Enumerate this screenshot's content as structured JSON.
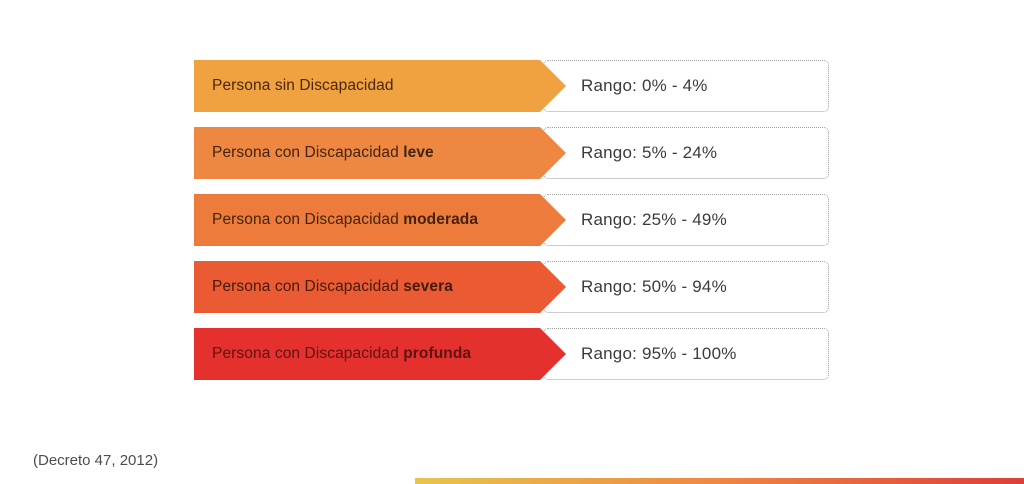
{
  "rows": [
    {
      "label_prefix": "Persona sin Discapacidad",
      "label_bold": "",
      "range": "Rango: 0% - 4%",
      "arrow_color": "#F0A240",
      "label_color": "#4A270E"
    },
    {
      "label_prefix": "Persona con Discapacidad ",
      "label_bold": "leve",
      "range": "Rango: 5% - 24%",
      "arrow_color": "#EE8742",
      "label_color": "#43230C"
    },
    {
      "label_prefix": "Persona con Discapacidad ",
      "label_bold": "moderada",
      "range": "Rango: 25% - 49%",
      "arrow_color": "#ED7C3C",
      "label_color": "#43230C"
    },
    {
      "label_prefix": "Persona con Discapacidad ",
      "label_bold": "severa",
      "range": "Rango: 50% - 94%",
      "arrow_color": "#EA5B33",
      "label_color": "#461A0C"
    },
    {
      "label_prefix": "Persona con Discapacidad ",
      "label_bold": "profunda",
      "range": "Rango: 95% - 100%",
      "arrow_color": "#E5312D",
      "label_color": "#5D1412"
    }
  ],
  "footer": {
    "citation": "(Decreto 47, 2012)"
  },
  "bottom_bar": {
    "gradient_start": "#E8C44C",
    "gradient_mid": "#EE8742",
    "gradient_end": "#DC3E38"
  }
}
